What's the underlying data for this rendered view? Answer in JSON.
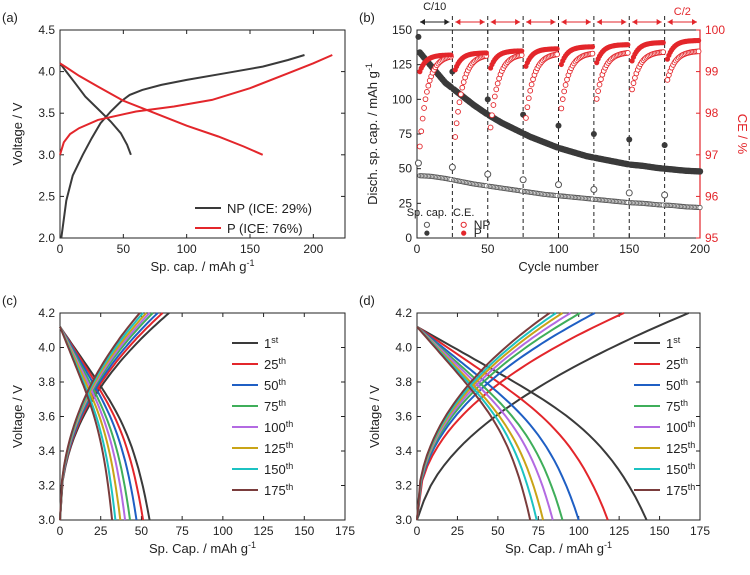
{
  "colors": {
    "np": "#3a3a3a",
    "p": "#e3262b",
    "axis": "#222222",
    "cycles": [
      "#3a3a3a",
      "#e3262b",
      "#1f5fc4",
      "#3fae5a",
      "#b36ae2",
      "#c9a417",
      "#1cc2c2",
      "#7a3c3c"
    ]
  },
  "chart_data": [
    {
      "id": "a",
      "panel_label": "(a)",
      "type": "line",
      "xlabel": "Sp. cap. / mAh g",
      "xlabel_sup": "-1",
      "ylabel": "Voltage / V",
      "xlim": [
        0,
        225
      ],
      "ylim": [
        2.0,
        4.5
      ],
      "xticks": [
        0,
        50,
        100,
        150,
        200
      ],
      "yticks": [
        2.0,
        2.5,
        3.0,
        3.5,
        4.0,
        4.5
      ],
      "series": [
        {
          "name": "NP (ICE: 29%)",
          "kind": "np",
          "segments": [
            {
              "x": [
                1,
                5,
                10,
                18,
                25,
                32,
                40,
                48,
                55,
                65,
                80,
                100,
                130,
                160,
                180,
                193
              ],
              "y": [
                2.0,
                2.45,
                2.75,
                3.0,
                3.2,
                3.38,
                3.52,
                3.64,
                3.72,
                3.78,
                3.84,
                3.9,
                3.98,
                4.06,
                4.14,
                4.2
              ]
            },
            {
              "x": [
                0,
                5,
                12,
                20,
                30,
                40,
                48,
                53,
                56
              ],
              "y": [
                4.1,
                4.0,
                3.86,
                3.7,
                3.55,
                3.4,
                3.26,
                3.12,
                3.0
              ]
            }
          ]
        },
        {
          "name": "P (ICE: 76%)",
          "kind": "p",
          "segments": [
            {
              "x": [
                0,
                3,
                8,
                15,
                30,
                60,
                90,
                120,
                150,
                180,
                200,
                215
              ],
              "y": [
                3.0,
                3.15,
                3.25,
                3.32,
                3.42,
                3.52,
                3.58,
                3.66,
                3.8,
                3.98,
                4.1,
                4.2
              ]
            },
            {
              "x": [
                0,
                5,
                15,
                30,
                50,
                75,
                100,
                125,
                145,
                160
              ],
              "y": [
                4.1,
                4.05,
                3.95,
                3.82,
                3.65,
                3.5,
                3.35,
                3.22,
                3.1,
                3.0
              ]
            }
          ]
        }
      ],
      "legend": {
        "position": "bottom-right",
        "entries": [
          "NP (ICE: 29%)",
          "P (ICE: 76%)"
        ]
      }
    },
    {
      "id": "b",
      "panel_label": "(b)",
      "type": "scatter",
      "xlabel": "Cycle number",
      "ylabel": "Disch. sp. cap. / mAh g",
      "ylabel_sup": "-1",
      "y2label": "CE / %",
      "xlim": [
        0,
        200
      ],
      "ylim": [
        0,
        150
      ],
      "y2lim": [
        95,
        100
      ],
      "xticks": [
        0,
        50,
        100,
        150,
        200
      ],
      "yticks": [
        0,
        25,
        50,
        75,
        100,
        125,
        150
      ],
      "y2ticks": [
        95,
        96,
        97,
        98,
        99,
        100
      ],
      "checkup_cycles": [
        25,
        50,
        75,
        100,
        125,
        150,
        175
      ],
      "rate_labels": [
        "C/10",
        "C/2"
      ],
      "np_capacity": {
        "x": [
          1,
          10,
          20,
          30,
          40,
          50,
          60,
          70,
          80,
          90,
          100,
          110,
          120,
          130,
          140,
          150,
          160,
          170,
          180,
          190,
          200
        ],
        "y": [
          135,
          124,
          112,
          104,
          96,
          89,
          83,
          78,
          73,
          69,
          65,
          62,
          59,
          57,
          55,
          53,
          52,
          50.5,
          49.5,
          48.5,
          48
        ]
      },
      "p_capacity": {
        "x": [
          1,
          10,
          20,
          30,
          40,
          50,
          60,
          70,
          80,
          90,
          100,
          110,
          120,
          130,
          140,
          150,
          160,
          170,
          180,
          190,
          200
        ],
        "y": [
          45,
          44.5,
          43,
          41,
          39,
          37.5,
          36,
          34.5,
          33,
          31.5,
          30.5,
          29.5,
          28.5,
          27.5,
          26.5,
          25.5,
          25,
          24,
          23.5,
          22.5,
          22
        ]
      },
      "np_checkup": {
        "x": [
          1,
          25,
          50,
          75,
          100,
          125,
          150,
          175
        ],
        "y": [
          145,
          120,
          100,
          89,
          81,
          75,
          71,
          67
        ]
      },
      "p_checkup": {
        "x": [
          1,
          25,
          50,
          75,
          100,
          125,
          150,
          175
        ],
        "y": [
          54,
          51,
          46,
          42,
          38.5,
          35,
          32.5,
          31
        ]
      },
      "np_ce_start": [
        97.2,
        98.8
      ],
      "np_ce_end": [
        99.4,
        99.5
      ],
      "p_ce_start": [
        99.0,
        99.3
      ],
      "p_ce_end": [
        99.4,
        99.75
      ],
      "legend": {
        "position": "bottom-left",
        "headers": [
          "Sp. cap.",
          "C.E."
        ],
        "entries": [
          "NP",
          "P"
        ]
      }
    },
    {
      "id": "c",
      "panel_label": "(c)",
      "type": "line",
      "xlabel": "Sp. Cap. / mAh g",
      "xlabel_sup": "-1",
      "ylabel": "Voltage / V",
      "xlim": [
        0,
        175
      ],
      "ylim": [
        3.0,
        4.2
      ],
      "xticks": [
        0,
        25,
        50,
        75,
        100,
        125,
        150,
        175
      ],
      "yticks": [
        3.0,
        3.2,
        3.4,
        3.6,
        3.8,
        4.0,
        4.2
      ],
      "cycle_labels": [
        "1",
        "25",
        "50",
        "75",
        "100",
        "125",
        "150",
        "175"
      ],
      "cycle_suffixes": [
        "st",
        "th",
        "th",
        "th",
        "th",
        "th",
        "th",
        "th"
      ],
      "charge_end_capacity": [
        67,
        63,
        60,
        57,
        55,
        53,
        51,
        49
      ],
      "discharge_end_capacity": [
        55,
        51,
        47,
        43,
        40,
        37,
        34,
        32
      ]
    },
    {
      "id": "d",
      "panel_label": "(d)",
      "type": "line",
      "xlabel": "Sp. Cap. / mAh g",
      "xlabel_sup": "-1",
      "ylabel": "Voltage / V",
      "xlim": [
        0,
        175
      ],
      "ylim": [
        3.0,
        4.2
      ],
      "xticks": [
        0,
        25,
        50,
        75,
        100,
        125,
        150,
        175
      ],
      "yticks": [
        3.0,
        3.2,
        3.4,
        3.6,
        3.8,
        4.0,
        4.2
      ],
      "cycle_labels": [
        "1",
        "25",
        "50",
        "75",
        "100",
        "125",
        "150",
        "175"
      ],
      "cycle_suffixes": [
        "st",
        "th",
        "th",
        "th",
        "th",
        "th",
        "th",
        "th"
      ],
      "charge_end_capacity": [
        168,
        128,
        110,
        101,
        95,
        90,
        86,
        82
      ],
      "discharge_end_capacity": [
        142,
        118,
        100,
        90,
        84,
        78,
        74,
        70
      ]
    }
  ]
}
